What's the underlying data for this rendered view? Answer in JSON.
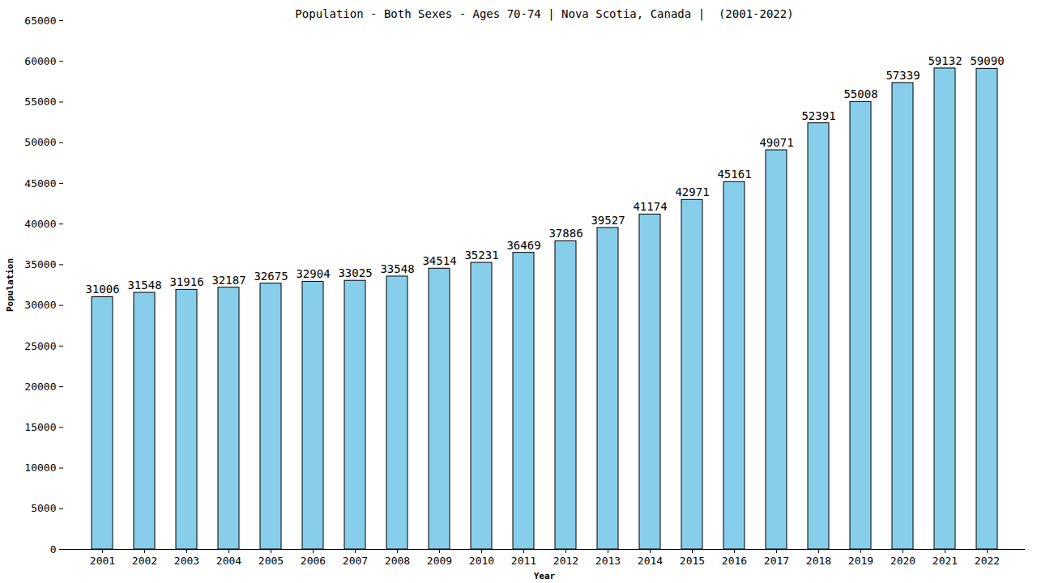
{
  "chart_data": {
    "type": "bar",
    "title": "Population - Both Sexes - Ages 70-74 | Nova Scotia, Canada |  (2001-2022)",
    "x_label": "Year",
    "y_label": "Population",
    "categories": [
      "2001",
      "2002",
      "2003",
      "2004",
      "2005",
      "2006",
      "2007",
      "2008",
      "2009",
      "2010",
      "2011",
      "2012",
      "2013",
      "2014",
      "2015",
      "2016",
      "2017",
      "2018",
      "2019",
      "2020",
      "2021",
      "2022"
    ],
    "values": [
      31006,
      31548,
      31916,
      32187,
      32675,
      32904,
      33025,
      33548,
      34514,
      35231,
      36469,
      37886,
      39527,
      41174,
      42971,
      45161,
      49071,
      52391,
      55008,
      57339,
      59132,
      59090
    ],
    "color": "#87ceeb",
    "ylim": [
      0,
      65000
    ],
    "yticks": [
      0,
      5000,
      10000,
      15000,
      20000,
      25000,
      30000,
      35000,
      40000,
      45000,
      50000,
      55000,
      60000,
      65000
    ],
    "grid": false,
    "data_labels": true
  }
}
